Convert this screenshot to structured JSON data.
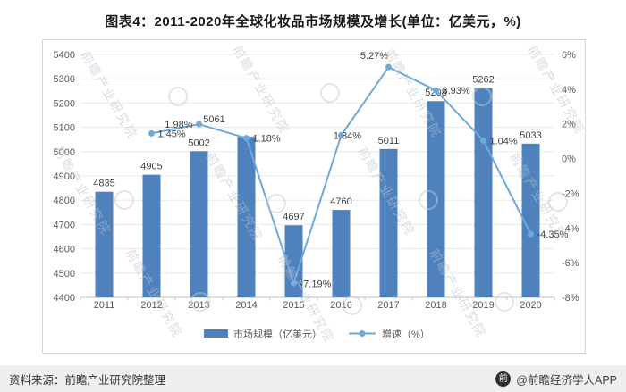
{
  "title": "图表4：2011-2020年全球化妆品市场规模及增长(单位：亿美元，%)",
  "chart_data": {
    "type": "bar+line",
    "title": "图表4：2011-2020年全球化妆品市场规模及增长(单位：亿美元，%)",
    "categories": [
      "2011",
      "2012",
      "2013",
      "2014",
      "2015",
      "2016",
      "2017",
      "2018",
      "2019",
      "2020"
    ],
    "series": [
      {
        "name": "市场规模（亿美元）",
        "chart": "bar",
        "axis": "left",
        "values": [
          4835,
          4905,
          5002,
          5061,
          4697,
          4760,
          5011,
          5208,
          5262,
          5033
        ]
      },
      {
        "name": "增速（%）",
        "chart": "line",
        "axis": "right",
        "values": [
          null,
          1.45,
          1.98,
          1.18,
          -7.19,
          1.34,
          5.27,
          3.93,
          1.04,
          -4.35
        ]
      }
    ],
    "left_axis": {
      "min": 4400,
      "max": 5400,
      "step": 100,
      "unit": "亿美元"
    },
    "right_axis": {
      "min": -8,
      "max": 6,
      "step": 2,
      "suffix": "%",
      "unit": "%"
    },
    "colors": {
      "bar": "#4f81bd",
      "line": "#6fa8dc"
    },
    "grid": true,
    "legend_position": "bottom"
  },
  "watermark_text": "前瞻产业研究院",
  "footer": {
    "source": "资料来源：前瞻产业研究院整理",
    "credit": "@前瞻经济学人APP",
    "logo_glyph": "前"
  }
}
